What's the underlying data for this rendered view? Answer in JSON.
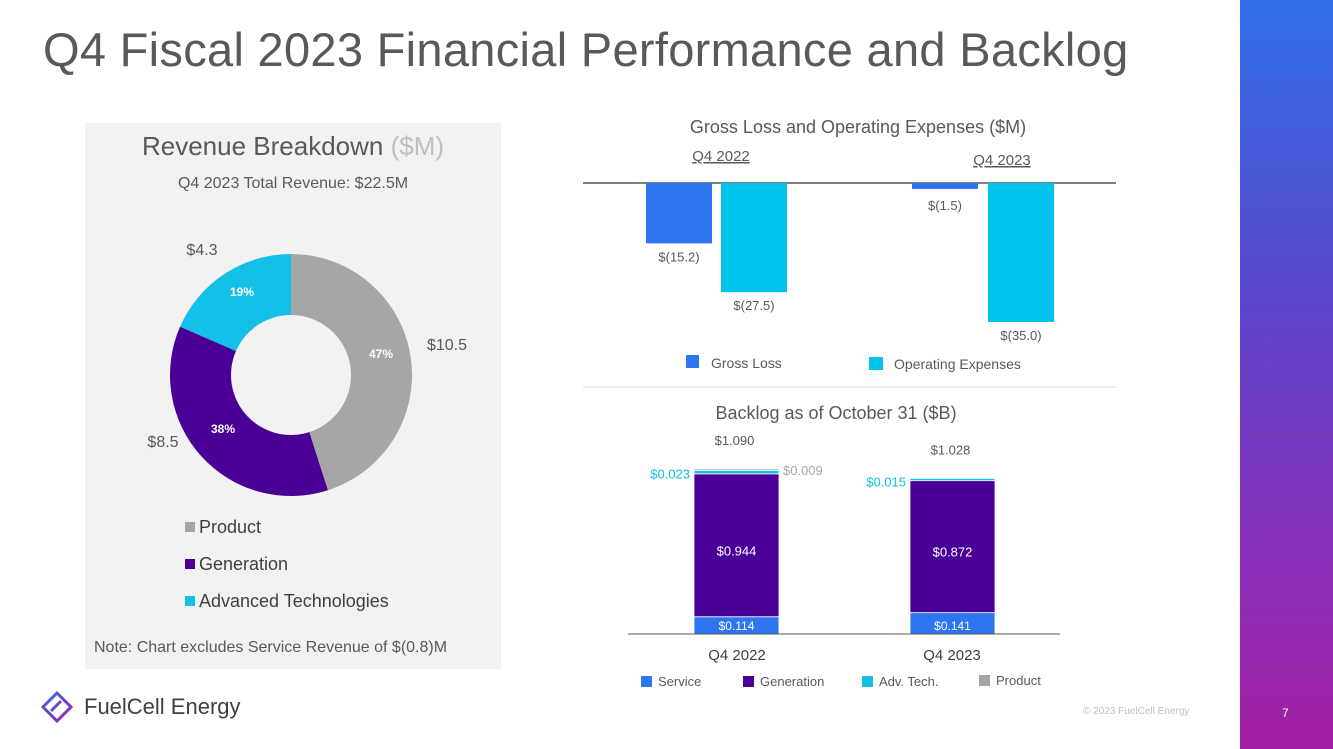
{
  "slide": {
    "title": "Q4 Fiscal 2023 Financial Performance and Backlog",
    "page_number": "7",
    "copyright": "© 2023 FuelCell Energy",
    "logo_text": "FuelCell Energy"
  },
  "revenue_panel": {
    "title": "Revenue Breakdown",
    "title_unit": "($M)",
    "subtitle": "Q4 2023 Total Revenue: $22.5M",
    "note": "Note: Chart excludes Service Revenue of $(0.8)M"
  },
  "colors": {
    "product": "#a6a6a6",
    "generation": "#4a0096",
    "adv_tech": "#12c0e8",
    "gross_loss": "#2e75f0",
    "operating_expenses": "#00c2eb",
    "service": "#2e75f0",
    "backlog_generation": "#4a0096",
    "backlog_adv": "#12c0e8",
    "backlog_product": "#a6a6a6"
  },
  "chart_data": [
    {
      "type": "pie",
      "title": "Revenue Breakdown ($M)",
      "subtitle": "Q4 2023 Total Revenue: $22.5M",
      "slices": [
        {
          "name": "Product",
          "value": 10.5,
          "value_label": "$10.5",
          "pct_label": "47%"
        },
        {
          "name": "Generation",
          "value": 8.5,
          "value_label": "$8.5",
          "pct_label": "38%"
        },
        {
          "name": "Advanced Technologies",
          "value": 4.3,
          "value_label": "$4.3",
          "pct_label": "19%"
        }
      ],
      "legend": [
        "Product",
        "Generation",
        "Advanced Technologies"
      ]
    },
    {
      "type": "bar",
      "title": "Gross Loss and Operating Expenses ($M)",
      "categories": [
        "Q4 2022",
        "Q4 2023"
      ],
      "series": [
        {
          "name": "Gross Loss",
          "values": [
            -15.2,
            -1.5
          ],
          "labels": [
            "$(15.2)",
            "$(1.5)"
          ]
        },
        {
          "name": "Operating Expenses",
          "values": [
            -27.5,
            -35.0
          ],
          "labels": [
            "$(27.5)",
            "$(35.0)"
          ]
        }
      ],
      "ylim": [
        -35.0,
        0
      ]
    },
    {
      "type": "bar",
      "stacked": true,
      "title": "Backlog as of October 31 ($B)",
      "categories": [
        "Q4 2022",
        "Q4 2023"
      ],
      "totals": [
        1.09,
        1.028
      ],
      "total_labels": [
        "$1.090",
        "$1.028"
      ],
      "series": [
        {
          "name": "Service",
          "values": [
            0.114,
            0.141
          ],
          "labels": [
            "$0.114",
            "$0.141"
          ]
        },
        {
          "name": "Generation",
          "values": [
            0.944,
            0.872
          ],
          "labels": [
            "$0.944",
            "$0.872"
          ]
        },
        {
          "name": "Adv. Tech.",
          "values": [
            0.023,
            0.015
          ],
          "labels": [
            "$0.023",
            "$0.015"
          ]
        },
        {
          "name": "Product",
          "values": [
            0.009,
            0
          ],
          "labels": [
            "$0.009",
            ""
          ]
        }
      ]
    }
  ]
}
